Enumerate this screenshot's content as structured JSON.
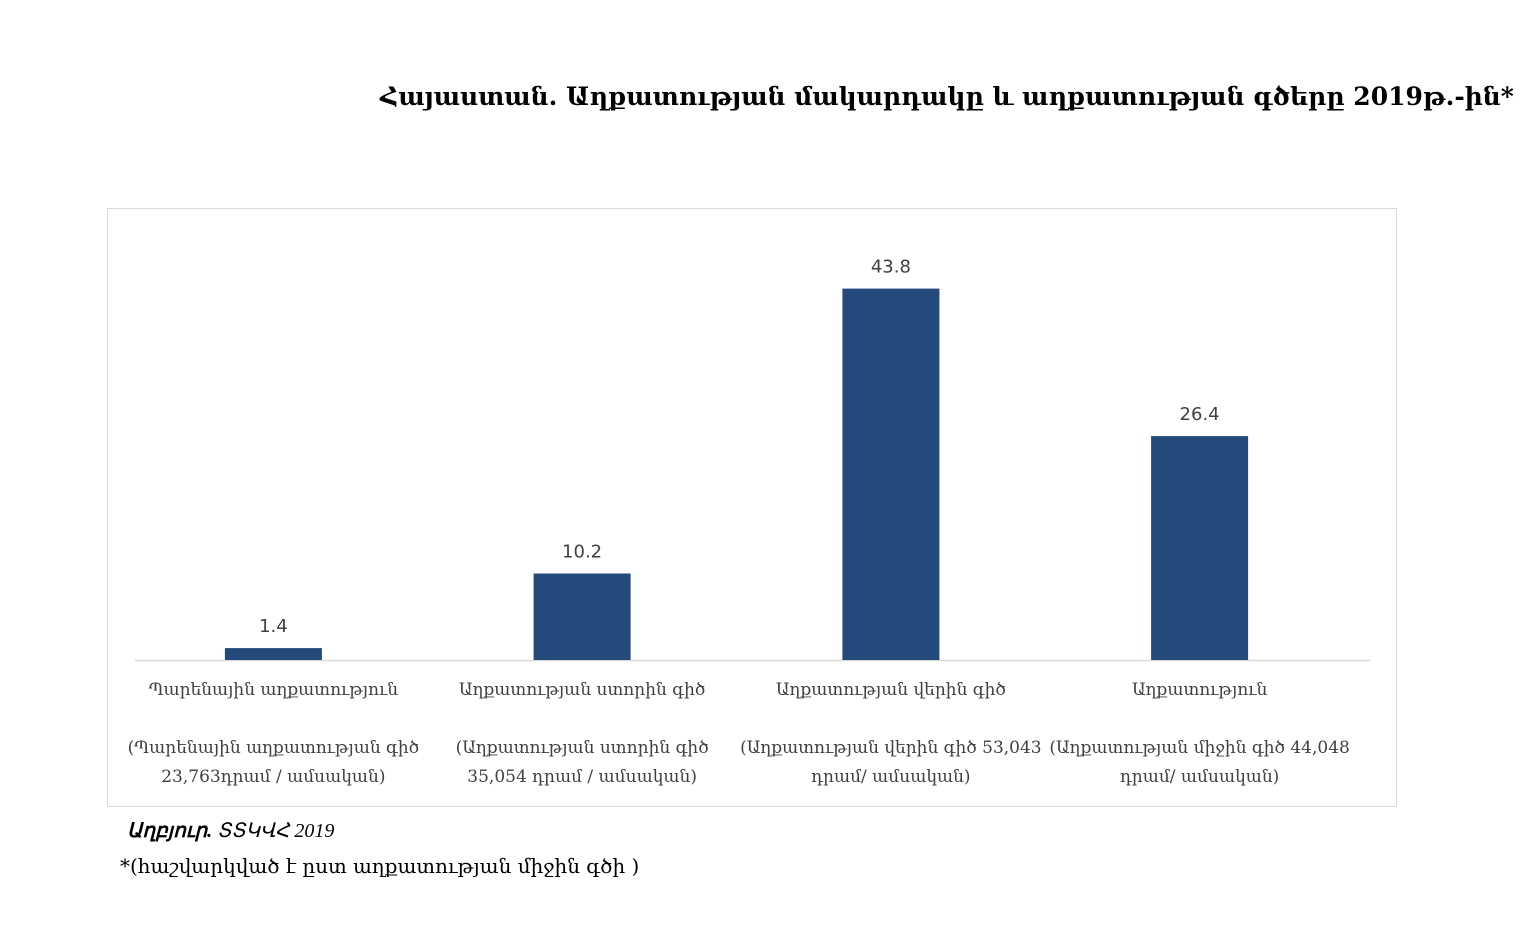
{
  "title": "Հայաստան. Աղքատության մակարդակը և աղքատության գծերը 2019թ.-ին*",
  "chart_data": {
    "type": "bar",
    "categories": [
      "Պարենային աղքատություն",
      "Աղքատության ստորին գիծ",
      "Աղքատության վերին գիծ",
      "Աղքատություն"
    ],
    "category_notes": [
      "(Պարենային աղքատության գիծ  23,763դրամ / ամսական)",
      "(Աղքատության ստորին գիծ 35,054 դրամ / ամսական)",
      "(Աղքատության վերին գիծ 53,043 դրամ/ ամսական)",
      "(Աղքատության միջին գիծ 44,048 դրամ/ ամսական)"
    ],
    "values": [
      1.4,
      10.2,
      43.8,
      26.4
    ],
    "data_labels": [
      "1.4",
      "10.2",
      "43.8",
      "26.4"
    ],
    "ylim": [
      0,
      50
    ],
    "grid": false,
    "legend": "none",
    "bar_color": "#234a7a"
  },
  "source": {
    "label": "Աղբյուր.",
    "text": "ՏՏԿՎՀ 2019"
  },
  "footnote": "*(հաշվարկված է ըստ աղքատության միջին գծի )"
}
